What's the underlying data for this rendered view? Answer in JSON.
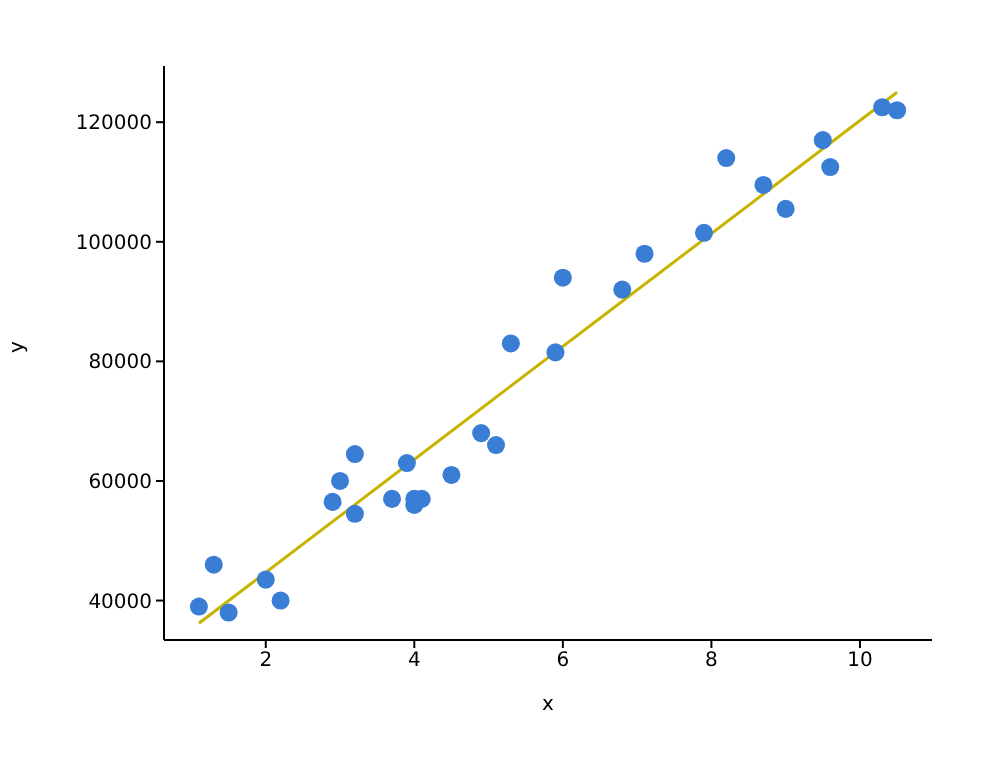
{
  "chart_data": {
    "type": "scatter",
    "xlabel": "x",
    "ylabel": "y",
    "grid": false,
    "legend": false,
    "xlim": [
      0.63,
      10.97
    ],
    "ylim": [
      33400,
      129400
    ],
    "xticks": [
      2,
      4,
      6,
      8,
      10
    ],
    "yticks": [
      40000,
      60000,
      80000,
      100000,
      120000
    ],
    "series": [
      {
        "marker": "circle",
        "color": "#3a7dd5",
        "x": [
          1.1,
          1.3,
          1.5,
          2.0,
          2.2,
          2.9,
          3.0,
          3.2,
          3.2,
          3.7,
          3.9,
          4.0,
          4.0,
          4.1,
          4.5,
          4.9,
          5.1,
          5.3,
          5.9,
          6.0,
          6.8,
          7.1,
          7.9,
          8.2,
          8.7,
          9.0,
          9.5,
          9.6,
          10.3,
          10.5
        ],
        "values": [
          39000,
          46000,
          38000,
          43500,
          40000,
          56500,
          60000,
          54500,
          64500,
          57000,
          63000,
          56000,
          57000,
          57000,
          61000,
          68000,
          66000,
          83000,
          81500,
          94000,
          92000,
          98000,
          101500,
          114000,
          109500,
          105500,
          117000,
          112500,
          122500,
          122000
        ]
      },
      {
        "type": "line",
        "marker": "none",
        "color": "#c8b400",
        "x": [
          1.1,
          10.5
        ],
        "values": [
          36200,
          125000
        ]
      }
    ]
  }
}
